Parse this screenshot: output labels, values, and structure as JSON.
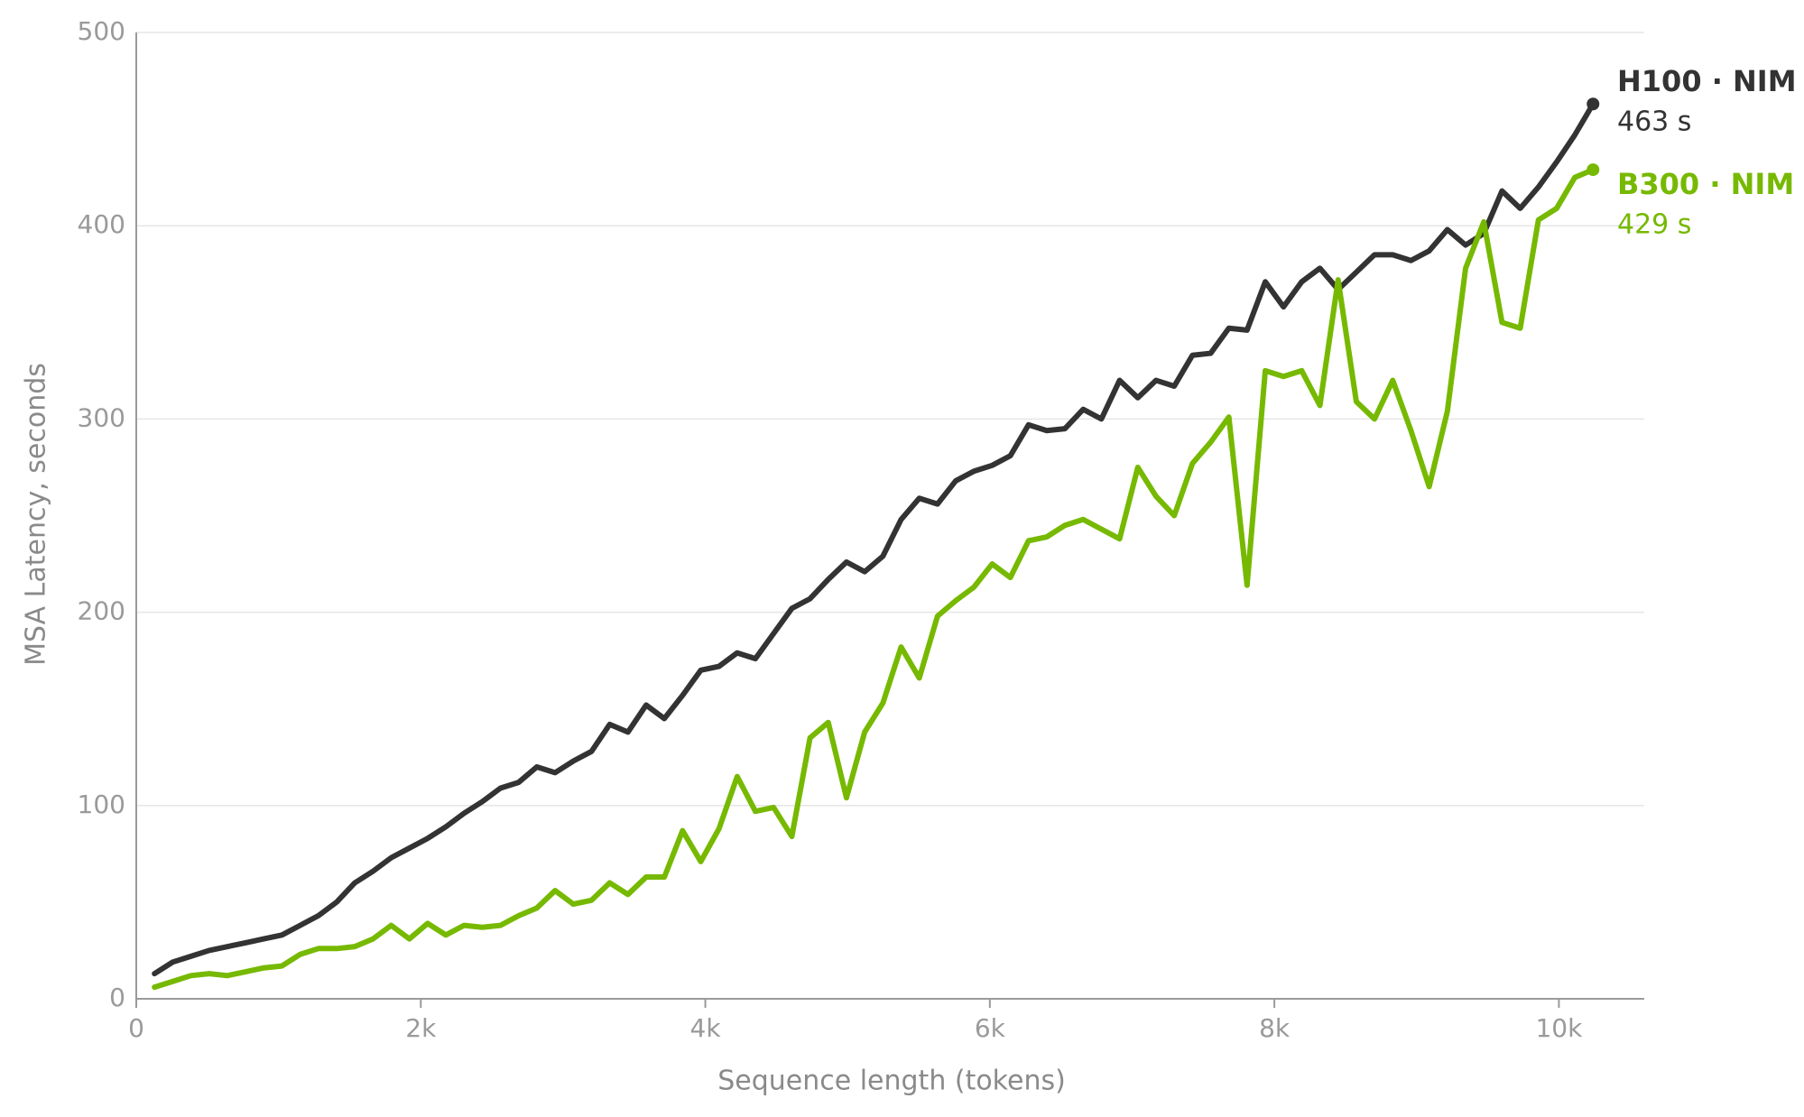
{
  "chart_data": {
    "type": "line",
    "xlabel": "Sequence length (tokens)",
    "ylabel": "MSA Latency, seconds",
    "x": [
      128,
      256,
      384,
      512,
      640,
      768,
      896,
      1024,
      1152,
      1280,
      1408,
      1536,
      1664,
      1792,
      1920,
      2048,
      2176,
      2304,
      2432,
      2560,
      2688,
      2816,
      2944,
      3072,
      3200,
      3328,
      3456,
      3584,
      3712,
      3840,
      3968,
      4096,
      4224,
      4352,
      4480,
      4608,
      4736,
      4864,
      4992,
      5120,
      5248,
      5376,
      5504,
      5632,
      5760,
      5888,
      6016,
      6144,
      6272,
      6400,
      6528,
      6656,
      6784,
      6912,
      7040,
      7168,
      7296,
      7424,
      7552,
      7680,
      7808,
      7936,
      8064,
      8192,
      8320,
      8448,
      8576,
      8704,
      8832,
      8960,
      9088,
      9216,
      9344,
      9472,
      9600,
      9728,
      9856,
      9984,
      10112,
      10240
    ],
    "series": [
      {
        "name": "H100 · NIM",
        "label": "463 s",
        "color": "#333333",
        "values": [
          13,
          19,
          22,
          25,
          27,
          29,
          31,
          33,
          38,
          43,
          50,
          60,
          66,
          73,
          78,
          83,
          89,
          96,
          102,
          109,
          112,
          120,
          117,
          123,
          128,
          142,
          138,
          152,
          145,
          157,
          170,
          172,
          179,
          176,
          189,
          202,
          207,
          217,
          226,
          221,
          229,
          248,
          259,
          256,
          268,
          273,
          276,
          281,
          297,
          294,
          295,
          305,
          300,
          320,
          311,
          320,
          317,
          333,
          334,
          347,
          346,
          371,
          358,
          371,
          378,
          367,
          376,
          385,
          385,
          382,
          387,
          398,
          390,
          396,
          418,
          409,
          420,
          433,
          447,
          463
        ]
      },
      {
        "name": "B300 · NIM",
        "label": "429 s",
        "color": "#76b900",
        "values": [
          6,
          9,
          12,
          13,
          12,
          14,
          16,
          17,
          23,
          26,
          26,
          27,
          31,
          38,
          31,
          39,
          33,
          38,
          37,
          38,
          43,
          47,
          56,
          49,
          51,
          60,
          54,
          63,
          63,
          87,
          71,
          88,
          115,
          97,
          99,
          84,
          135,
          143,
          104,
          138,
          153,
          182,
          166,
          198,
          206,
          213,
          225,
          218,
          237,
          239,
          245,
          248,
          243,
          238,
          275,
          260,
          250,
          277,
          288,
          301,
          214,
          325,
          322,
          325,
          307,
          372,
          309,
          300,
          320,
          294,
          265,
          304,
          378,
          402,
          350,
          347,
          403,
          409,
          425,
          429
        ]
      }
    ],
    "xlim": [
      0,
      10600
    ],
    "xticks": [
      0,
      {
        "value": 2000,
        "label": "2k"
      },
      {
        "value": 4000,
        "label": "4k"
      },
      {
        "value": 6000,
        "label": "6k"
      },
      {
        "value": 8000,
        "label": "8k"
      },
      {
        "value": 10000,
        "label": "10k"
      }
    ],
    "ylim": [
      0,
      500
    ],
    "yticks": [
      0,
      100,
      200,
      300,
      400,
      500
    ],
    "grid": true
  }
}
